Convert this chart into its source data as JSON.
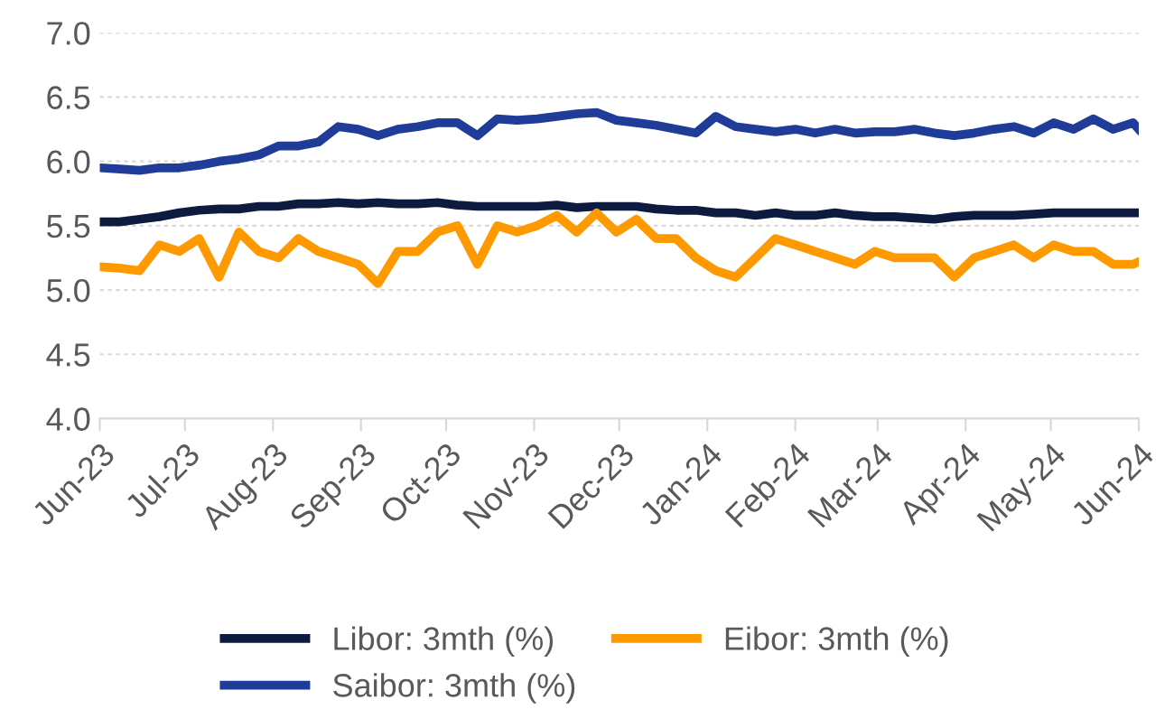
{
  "chart_data": {
    "type": "line",
    "x": [
      "2023-06-01",
      "2023-06-08",
      "2023-06-15",
      "2023-06-22",
      "2023-06-29",
      "2023-07-06",
      "2023-07-13",
      "2023-07-20",
      "2023-07-27",
      "2023-08-03",
      "2023-08-10",
      "2023-08-17",
      "2023-08-24",
      "2023-08-31",
      "2023-09-07",
      "2023-09-14",
      "2023-09-21",
      "2023-09-28",
      "2023-10-05",
      "2023-10-12",
      "2023-10-19",
      "2023-10-26",
      "2023-11-02",
      "2023-11-09",
      "2023-11-16",
      "2023-11-23",
      "2023-11-30",
      "2023-12-07",
      "2023-12-14",
      "2023-12-21",
      "2023-12-28",
      "2024-01-04",
      "2024-01-11",
      "2024-01-18",
      "2024-01-25",
      "2024-02-01",
      "2024-02-08",
      "2024-02-15",
      "2024-02-22",
      "2024-02-29",
      "2024-03-07",
      "2024-03-14",
      "2024-03-21",
      "2024-03-28",
      "2024-04-04",
      "2024-04-11",
      "2024-04-18",
      "2024-04-25",
      "2024-05-02",
      "2024-05-09",
      "2024-05-16",
      "2024-05-23",
      "2024-05-30",
      "2024-06-01"
    ],
    "series": [
      {
        "name": "Libor: 3mth (%)",
        "color": "#0d1b40",
        "values": [
          5.53,
          5.53,
          5.55,
          5.57,
          5.6,
          5.62,
          5.63,
          5.63,
          5.65,
          5.65,
          5.67,
          5.67,
          5.68,
          5.67,
          5.68,
          5.67,
          5.67,
          5.68,
          5.66,
          5.65,
          5.65,
          5.65,
          5.65,
          5.66,
          5.64,
          5.65,
          5.65,
          5.65,
          5.63,
          5.62,
          5.62,
          5.6,
          5.6,
          5.58,
          5.6,
          5.58,
          5.58,
          5.6,
          5.58,
          5.57,
          5.57,
          5.56,
          5.55,
          5.57,
          5.58,
          5.58,
          5.58,
          5.59,
          5.6,
          5.6,
          5.6,
          5.6,
          5.6,
          5.6
        ]
      },
      {
        "name": "Eibor: 3mth (%)",
        "color": "#ff9900",
        "values": [
          5.18,
          5.17,
          5.15,
          5.35,
          5.3,
          5.4,
          5.1,
          5.45,
          5.3,
          5.25,
          5.4,
          5.3,
          5.25,
          5.2,
          5.05,
          5.3,
          5.3,
          5.45,
          5.5,
          5.2,
          5.5,
          5.45,
          5.5,
          5.58,
          5.45,
          5.6,
          5.45,
          5.55,
          5.4,
          5.4,
          5.25,
          5.15,
          5.1,
          5.25,
          5.4,
          5.35,
          5.3,
          5.25,
          5.2,
          5.3,
          5.25,
          5.25,
          5.25,
          5.1,
          5.25,
          5.3,
          5.35,
          5.25,
          5.35,
          5.3,
          5.3,
          5.2,
          5.2,
          5.22
        ]
      },
      {
        "name": "Saibor: 3mth (%)",
        "color": "#1f3c99",
        "values": [
          5.95,
          5.94,
          5.93,
          5.95,
          5.95,
          5.97,
          6.0,
          6.02,
          6.05,
          6.12,
          6.12,
          6.15,
          6.27,
          6.25,
          6.2,
          6.25,
          6.27,
          6.3,
          6.3,
          6.2,
          6.33,
          6.32,
          6.33,
          6.35,
          6.37,
          6.38,
          6.32,
          6.3,
          6.28,
          6.25,
          6.22,
          6.35,
          6.27,
          6.25,
          6.23,
          6.25,
          6.22,
          6.25,
          6.22,
          6.23,
          6.23,
          6.25,
          6.22,
          6.2,
          6.22,
          6.25,
          6.27,
          6.22,
          6.3,
          6.25,
          6.33,
          6.25,
          6.3,
          6.25
        ]
      }
    ],
    "xlim": [
      "2023-06-01",
      "2024-06-01"
    ],
    "xticks": [
      {
        "value": "2023-06-01",
        "label": "Jun-23"
      },
      {
        "value": "2023-07-01",
        "label": "Jul-23"
      },
      {
        "value": "2023-08-01",
        "label": "Aug-23"
      },
      {
        "value": "2023-09-01",
        "label": "Sep-23"
      },
      {
        "value": "2023-10-01",
        "label": "Oct-23"
      },
      {
        "value": "2023-11-01",
        "label": "Nov-23"
      },
      {
        "value": "2023-12-01",
        "label": "Dec-23"
      },
      {
        "value": "2024-01-01",
        "label": "Jan-24"
      },
      {
        "value": "2024-02-01",
        "label": "Feb-24"
      },
      {
        "value": "2024-03-01",
        "label": "Mar-24"
      },
      {
        "value": "2024-04-01",
        "label": "Apr-24"
      },
      {
        "value": "2024-05-01",
        "label": "May-24"
      },
      {
        "value": "2024-06-01",
        "label": "Jun-24"
      }
    ],
    "ylim": [
      4.0,
      7.0
    ],
    "yticks": [
      {
        "value": 4.0,
        "label": "4.0"
      },
      {
        "value": 4.5,
        "label": "4.5"
      },
      {
        "value": 5.0,
        "label": "5.0"
      },
      {
        "value": 5.5,
        "label": "5.5"
      },
      {
        "value": 6.0,
        "label": "6.0"
      },
      {
        "value": 6.5,
        "label": "6.5"
      },
      {
        "value": 7.0,
        "label": "7.0"
      }
    ],
    "grid": "y",
    "legend": "bottom",
    "marker": "none",
    "line_style": "solid"
  }
}
